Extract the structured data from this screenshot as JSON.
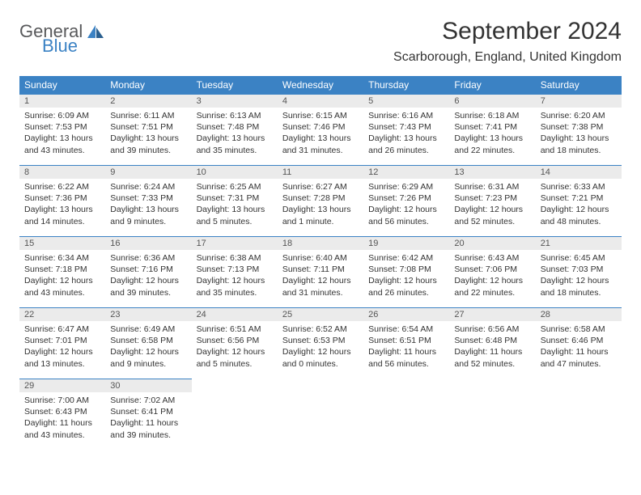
{
  "logo": {
    "line1": "General",
    "line2": "Blue"
  },
  "title": "September 2024",
  "location": "Scarborough, England, United Kingdom",
  "colors": {
    "header_bg": "#3b82c4",
    "header_text": "#ffffff",
    "daynum_bg": "#ebebeb",
    "text": "#333333",
    "logo_gray": "#58595b",
    "logo_blue": "#3b82c4"
  },
  "day_headers": [
    "Sunday",
    "Monday",
    "Tuesday",
    "Wednesday",
    "Thursday",
    "Friday",
    "Saturday"
  ],
  "weeks": [
    [
      {
        "n": "1",
        "sr": "6:09 AM",
        "ss": "7:53 PM",
        "dl": "13 hours and 43 minutes."
      },
      {
        "n": "2",
        "sr": "6:11 AM",
        "ss": "7:51 PM",
        "dl": "13 hours and 39 minutes."
      },
      {
        "n": "3",
        "sr": "6:13 AM",
        "ss": "7:48 PM",
        "dl": "13 hours and 35 minutes."
      },
      {
        "n": "4",
        "sr": "6:15 AM",
        "ss": "7:46 PM",
        "dl": "13 hours and 31 minutes."
      },
      {
        "n": "5",
        "sr": "6:16 AM",
        "ss": "7:43 PM",
        "dl": "13 hours and 26 minutes."
      },
      {
        "n": "6",
        "sr": "6:18 AM",
        "ss": "7:41 PM",
        "dl": "13 hours and 22 minutes."
      },
      {
        "n": "7",
        "sr": "6:20 AM",
        "ss": "7:38 PM",
        "dl": "13 hours and 18 minutes."
      }
    ],
    [
      {
        "n": "8",
        "sr": "6:22 AM",
        "ss": "7:36 PM",
        "dl": "13 hours and 14 minutes."
      },
      {
        "n": "9",
        "sr": "6:24 AM",
        "ss": "7:33 PM",
        "dl": "13 hours and 9 minutes."
      },
      {
        "n": "10",
        "sr": "6:25 AM",
        "ss": "7:31 PM",
        "dl": "13 hours and 5 minutes."
      },
      {
        "n": "11",
        "sr": "6:27 AM",
        "ss": "7:28 PM",
        "dl": "13 hours and 1 minute."
      },
      {
        "n": "12",
        "sr": "6:29 AM",
        "ss": "7:26 PM",
        "dl": "12 hours and 56 minutes."
      },
      {
        "n": "13",
        "sr": "6:31 AM",
        "ss": "7:23 PM",
        "dl": "12 hours and 52 minutes."
      },
      {
        "n": "14",
        "sr": "6:33 AM",
        "ss": "7:21 PM",
        "dl": "12 hours and 48 minutes."
      }
    ],
    [
      {
        "n": "15",
        "sr": "6:34 AM",
        "ss": "7:18 PM",
        "dl": "12 hours and 43 minutes."
      },
      {
        "n": "16",
        "sr": "6:36 AM",
        "ss": "7:16 PM",
        "dl": "12 hours and 39 minutes."
      },
      {
        "n": "17",
        "sr": "6:38 AM",
        "ss": "7:13 PM",
        "dl": "12 hours and 35 minutes."
      },
      {
        "n": "18",
        "sr": "6:40 AM",
        "ss": "7:11 PM",
        "dl": "12 hours and 31 minutes."
      },
      {
        "n": "19",
        "sr": "6:42 AM",
        "ss": "7:08 PM",
        "dl": "12 hours and 26 minutes."
      },
      {
        "n": "20",
        "sr": "6:43 AM",
        "ss": "7:06 PM",
        "dl": "12 hours and 22 minutes."
      },
      {
        "n": "21",
        "sr": "6:45 AM",
        "ss": "7:03 PM",
        "dl": "12 hours and 18 minutes."
      }
    ],
    [
      {
        "n": "22",
        "sr": "6:47 AM",
        "ss": "7:01 PM",
        "dl": "12 hours and 13 minutes."
      },
      {
        "n": "23",
        "sr": "6:49 AM",
        "ss": "6:58 PM",
        "dl": "12 hours and 9 minutes."
      },
      {
        "n": "24",
        "sr": "6:51 AM",
        "ss": "6:56 PM",
        "dl": "12 hours and 5 minutes."
      },
      {
        "n": "25",
        "sr": "6:52 AM",
        "ss": "6:53 PM",
        "dl": "12 hours and 0 minutes."
      },
      {
        "n": "26",
        "sr": "6:54 AM",
        "ss": "6:51 PM",
        "dl": "11 hours and 56 minutes."
      },
      {
        "n": "27",
        "sr": "6:56 AM",
        "ss": "6:48 PM",
        "dl": "11 hours and 52 minutes."
      },
      {
        "n": "28",
        "sr": "6:58 AM",
        "ss": "6:46 PM",
        "dl": "11 hours and 47 minutes."
      }
    ],
    [
      {
        "n": "29",
        "sr": "7:00 AM",
        "ss": "6:43 PM",
        "dl": "11 hours and 43 minutes."
      },
      {
        "n": "30",
        "sr": "7:02 AM",
        "ss": "6:41 PM",
        "dl": "11 hours and 39 minutes."
      },
      null,
      null,
      null,
      null,
      null
    ]
  ],
  "labels": {
    "sunrise": "Sunrise:",
    "sunset": "Sunset:",
    "daylight": "Daylight:"
  }
}
